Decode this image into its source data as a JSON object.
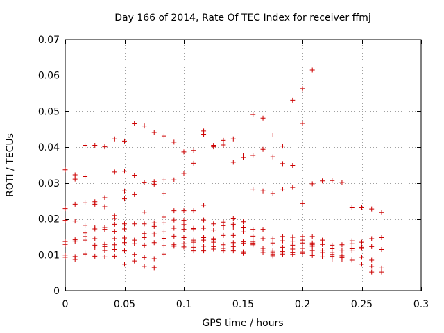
{
  "chart_data": {
    "type": "scatter",
    "title": "Day 166 of 2014, Rate Of TEC Index for receiver ffmj",
    "xlabel": "GPS time / hours",
    "ylabel": "ROTI / TECUs",
    "xlim": [
      0,
      0.3
    ],
    "ylim": [
      0,
      0.07
    ],
    "x_ticks": [
      0,
      0.05,
      0.1,
      0.15,
      0.2,
      0.25,
      0.3
    ],
    "x_tick_labels": [
      "0",
      "0.05",
      "0.1",
      "0.15",
      "0.2",
      "0.25",
      "0.3"
    ],
    "y_ticks": [
      0,
      0.01,
      0.02,
      0.03,
      0.04,
      0.05,
      0.06,
      0.07
    ],
    "y_tick_labels": [
      "0",
      "0.01",
      "0.02",
      "0.03",
      "0.04",
      "0.05",
      "0.06",
      "0.07"
    ],
    "grid": true,
    "marker": "+",
    "series": [
      {
        "name": "ROTI",
        "color": "#cc0000",
        "points": [
          [
            0.0,
            0.0337
          ],
          [
            0.0,
            0.0229
          ],
          [
            0.0,
            0.0196
          ],
          [
            0.0,
            0.0137
          ],
          [
            0.0,
            0.0129
          ],
          [
            0.0,
            0.0099
          ],
          [
            0.0,
            0.0093
          ],
          [
            0.0083,
            0.0323
          ],
          [
            0.0083,
            0.0311
          ],
          [
            0.0083,
            0.0241
          ],
          [
            0.0083,
            0.0194
          ],
          [
            0.0083,
            0.0142
          ],
          [
            0.0083,
            0.0138
          ],
          [
            0.0083,
            0.0095
          ],
          [
            0.0083,
            0.0087
          ],
          [
            0.0167,
            0.0405
          ],
          [
            0.0167,
            0.0318
          ],
          [
            0.0167,
            0.0245
          ],
          [
            0.0167,
            0.0182
          ],
          [
            0.0167,
            0.0161
          ],
          [
            0.0167,
            0.0151
          ],
          [
            0.0167,
            0.0141
          ],
          [
            0.0167,
            0.0105
          ],
          [
            0.0167,
            0.0102
          ],
          [
            0.025,
            0.0405
          ],
          [
            0.025,
            0.0248
          ],
          [
            0.025,
            0.0241
          ],
          [
            0.025,
            0.0175
          ],
          [
            0.025,
            0.0172
          ],
          [
            0.025,
            0.0145
          ],
          [
            0.025,
            0.0127
          ],
          [
            0.025,
            0.0119
          ],
          [
            0.025,
            0.0096
          ],
          [
            0.0333,
            0.0401
          ],
          [
            0.0333,
            0.0259
          ],
          [
            0.0333,
            0.0234
          ],
          [
            0.0333,
            0.0176
          ],
          [
            0.0333,
            0.0171
          ],
          [
            0.0333,
            0.0129
          ],
          [
            0.0333,
            0.0123
          ],
          [
            0.0333,
            0.0112
          ],
          [
            0.0333,
            0.0094
          ],
          [
            0.0417,
            0.0423
          ],
          [
            0.0417,
            0.0331
          ],
          [
            0.0417,
            0.0209
          ],
          [
            0.0417,
            0.0201
          ],
          [
            0.0417,
            0.0185
          ],
          [
            0.0417,
            0.0165
          ],
          [
            0.0417,
            0.0145
          ],
          [
            0.0417,
            0.0128
          ],
          [
            0.0417,
            0.0115
          ],
          [
            0.0417,
            0.0096
          ],
          [
            0.05,
            0.0417
          ],
          [
            0.05,
            0.0333
          ],
          [
            0.05,
            0.0278
          ],
          [
            0.05,
            0.0256
          ],
          [
            0.05,
            0.0186
          ],
          [
            0.05,
            0.0172
          ],
          [
            0.05,
            0.0147
          ],
          [
            0.05,
            0.0134
          ],
          [
            0.05,
            0.0111
          ],
          [
            0.05,
            0.0074
          ],
          [
            0.0583,
            0.0465
          ],
          [
            0.0583,
            0.0322
          ],
          [
            0.0583,
            0.0268
          ],
          [
            0.0583,
            0.0186
          ],
          [
            0.0583,
            0.0141
          ],
          [
            0.0583,
            0.0131
          ],
          [
            0.0583,
            0.0101
          ],
          [
            0.0583,
            0.0083
          ],
          [
            0.0667,
            0.0459
          ],
          [
            0.0667,
            0.0301
          ],
          [
            0.0667,
            0.0219
          ],
          [
            0.0667,
            0.0186
          ],
          [
            0.0667,
            0.0159
          ],
          [
            0.0667,
            0.0148
          ],
          [
            0.0667,
            0.0127
          ],
          [
            0.0667,
            0.0092
          ],
          [
            0.0667,
            0.0068
          ],
          [
            0.075,
            0.0441
          ],
          [
            0.075,
            0.0304
          ],
          [
            0.075,
            0.0297
          ],
          [
            0.075,
            0.0189
          ],
          [
            0.075,
            0.0179
          ],
          [
            0.075,
            0.0158
          ],
          [
            0.075,
            0.0134
          ],
          [
            0.075,
            0.0089
          ],
          [
            0.075,
            0.0064
          ],
          [
            0.0833,
            0.0431
          ],
          [
            0.0833,
            0.0309
          ],
          [
            0.0833,
            0.0271
          ],
          [
            0.0833,
            0.0205
          ],
          [
            0.0833,
            0.0189
          ],
          [
            0.0833,
            0.0164
          ],
          [
            0.0833,
            0.0146
          ],
          [
            0.0833,
            0.0126
          ],
          [
            0.0833,
            0.0102
          ],
          [
            0.0917,
            0.0414
          ],
          [
            0.0917,
            0.0309
          ],
          [
            0.0917,
            0.0223
          ],
          [
            0.0917,
            0.0197
          ],
          [
            0.0917,
            0.0174
          ],
          [
            0.0917,
            0.0152
          ],
          [
            0.0917,
            0.0128
          ],
          [
            0.0917,
            0.0124
          ],
          [
            0.1,
            0.0387
          ],
          [
            0.1,
            0.0327
          ],
          [
            0.1,
            0.0223
          ],
          [
            0.1,
            0.0196
          ],
          [
            0.1,
            0.0184
          ],
          [
            0.1,
            0.0171
          ],
          [
            0.1,
            0.0148
          ],
          [
            0.1,
            0.0131
          ],
          [
            0.1,
            0.0122
          ],
          [
            0.1083,
            0.0391
          ],
          [
            0.1083,
            0.0355
          ],
          [
            0.1083,
            0.0223
          ],
          [
            0.1083,
            0.0174
          ],
          [
            0.1083,
            0.0172
          ],
          [
            0.1083,
            0.0141
          ],
          [
            0.1083,
            0.0135
          ],
          [
            0.1083,
            0.0121
          ],
          [
            0.1083,
            0.0111
          ],
          [
            0.1167,
            0.0445
          ],
          [
            0.1167,
            0.0436
          ],
          [
            0.1167,
            0.0238
          ],
          [
            0.1167,
            0.0197
          ],
          [
            0.1167,
            0.0174
          ],
          [
            0.1167,
            0.0148
          ],
          [
            0.1167,
            0.0141
          ],
          [
            0.1167,
            0.0124
          ],
          [
            0.1167,
            0.0111
          ],
          [
            0.125,
            0.0405
          ],
          [
            0.125,
            0.0401
          ],
          [
            0.125,
            0.0186
          ],
          [
            0.125,
            0.0169
          ],
          [
            0.125,
            0.0145
          ],
          [
            0.125,
            0.0142
          ],
          [
            0.125,
            0.0135
          ],
          [
            0.125,
            0.0123
          ],
          [
            0.125,
            0.0116
          ],
          [
            0.1333,
            0.0419
          ],
          [
            0.1333,
            0.0406
          ],
          [
            0.1333,
            0.0191
          ],
          [
            0.1333,
            0.0181
          ],
          [
            0.1333,
            0.0175
          ],
          [
            0.1333,
            0.0154
          ],
          [
            0.1333,
            0.0128
          ],
          [
            0.1333,
            0.0118
          ],
          [
            0.1333,
            0.0111
          ],
          [
            0.1417,
            0.0423
          ],
          [
            0.1417,
            0.0358
          ],
          [
            0.1417,
            0.0202
          ],
          [
            0.1417,
            0.0185
          ],
          [
            0.1417,
            0.0175
          ],
          [
            0.1417,
            0.0154
          ],
          [
            0.1417,
            0.0134
          ],
          [
            0.1417,
            0.0123
          ],
          [
            0.1417,
            0.0111
          ],
          [
            0.15,
            0.0378
          ],
          [
            0.15,
            0.0371
          ],
          [
            0.15,
            0.0192
          ],
          [
            0.15,
            0.0177
          ],
          [
            0.15,
            0.0164
          ],
          [
            0.15,
            0.0136
          ],
          [
            0.15,
            0.0132
          ],
          [
            0.15,
            0.0108
          ],
          [
            0.15,
            0.0104
          ],
          [
            0.1583,
            0.0491
          ],
          [
            0.1583,
            0.0377
          ],
          [
            0.1583,
            0.0283
          ],
          [
            0.1583,
            0.0171
          ],
          [
            0.1583,
            0.0152
          ],
          [
            0.1583,
            0.0137
          ],
          [
            0.1583,
            0.0133
          ],
          [
            0.1583,
            0.0131
          ],
          [
            0.1583,
            0.0128
          ],
          [
            0.1667,
            0.0481
          ],
          [
            0.1667,
            0.0394
          ],
          [
            0.1667,
            0.0278
          ],
          [
            0.1667,
            0.0171
          ],
          [
            0.1667,
            0.0145
          ],
          [
            0.1667,
            0.0118
          ],
          [
            0.1667,
            0.0113
          ],
          [
            0.1667,
            0.0106
          ],
          [
            0.175,
            0.0434
          ],
          [
            0.175,
            0.0373
          ],
          [
            0.175,
            0.0271
          ],
          [
            0.175,
            0.0145
          ],
          [
            0.175,
            0.0133
          ],
          [
            0.175,
            0.0113
          ],
          [
            0.175,
            0.0108
          ],
          [
            0.175,
            0.0102
          ],
          [
            0.175,
            0.0097
          ],
          [
            0.1833,
            0.0403
          ],
          [
            0.1833,
            0.0354
          ],
          [
            0.1833,
            0.0283
          ],
          [
            0.1833,
            0.0151
          ],
          [
            0.1833,
            0.0139
          ],
          [
            0.1833,
            0.0121
          ],
          [
            0.1833,
            0.0109
          ],
          [
            0.1833,
            0.0105
          ],
          [
            0.1833,
            0.0101
          ],
          [
            0.1917,
            0.0531
          ],
          [
            0.1917,
            0.0349
          ],
          [
            0.1917,
            0.0288
          ],
          [
            0.1917,
            0.0149
          ],
          [
            0.1917,
            0.0138
          ],
          [
            0.1917,
            0.0127
          ],
          [
            0.1917,
            0.0116
          ],
          [
            0.1917,
            0.0107
          ],
          [
            0.1917,
            0.0101
          ],
          [
            0.2,
            0.0563
          ],
          [
            0.2,
            0.0466
          ],
          [
            0.2,
            0.0243
          ],
          [
            0.2,
            0.0151
          ],
          [
            0.2,
            0.0141
          ],
          [
            0.2,
            0.0133
          ],
          [
            0.2,
            0.0118
          ],
          [
            0.2,
            0.0108
          ],
          [
            0.2,
            0.0104
          ],
          [
            0.2083,
            0.0615
          ],
          [
            0.2083,
            0.0298
          ],
          [
            0.2083,
            0.0151
          ],
          [
            0.2083,
            0.0133
          ],
          [
            0.2083,
            0.0128
          ],
          [
            0.2083,
            0.0124
          ],
          [
            0.2083,
            0.0112
          ],
          [
            0.2083,
            0.0098
          ],
          [
            0.2167,
            0.0306
          ],
          [
            0.2167,
            0.0141
          ],
          [
            0.2167,
            0.0129
          ],
          [
            0.2167,
            0.0113
          ],
          [
            0.2167,
            0.0106
          ],
          [
            0.2167,
            0.0094
          ],
          [
            0.225,
            0.0307
          ],
          [
            0.225,
            0.0127
          ],
          [
            0.225,
            0.0117
          ],
          [
            0.225,
            0.0106
          ],
          [
            0.225,
            0.0101
          ],
          [
            0.225,
            0.0096
          ],
          [
            0.225,
            0.0088
          ],
          [
            0.2333,
            0.0302
          ],
          [
            0.2333,
            0.0128
          ],
          [
            0.2333,
            0.0113
          ],
          [
            0.2333,
            0.0097
          ],
          [
            0.2333,
            0.0092
          ],
          [
            0.2333,
            0.0088
          ],
          [
            0.2417,
            0.0231
          ],
          [
            0.2417,
            0.0139
          ],
          [
            0.2417,
            0.0131
          ],
          [
            0.2417,
            0.0117
          ],
          [
            0.2417,
            0.0113
          ],
          [
            0.2417,
            0.0088
          ],
          [
            0.2417,
            0.0085
          ],
          [
            0.25,
            0.0231
          ],
          [
            0.25,
            0.0135
          ],
          [
            0.25,
            0.0121
          ],
          [
            0.25,
            0.0118
          ],
          [
            0.25,
            0.0093
          ],
          [
            0.25,
            0.0074
          ],
          [
            0.2583,
            0.0228
          ],
          [
            0.2583,
            0.0145
          ],
          [
            0.2583,
            0.0123
          ],
          [
            0.2583,
            0.0085
          ],
          [
            0.2583,
            0.0068
          ],
          [
            0.2583,
            0.0052
          ],
          [
            0.2667,
            0.0218
          ],
          [
            0.2667,
            0.0148
          ],
          [
            0.2667,
            0.0115
          ],
          [
            0.2667,
            0.0063
          ],
          [
            0.2667,
            0.0052
          ]
        ]
      }
    ]
  }
}
